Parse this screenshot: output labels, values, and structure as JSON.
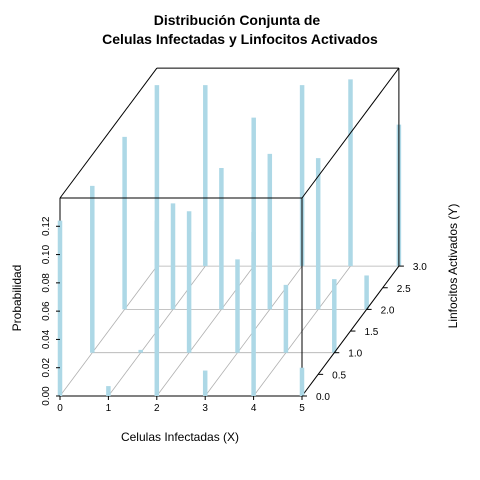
{
  "chart_data": {
    "type": "scatter3d-histogram",
    "title_line1": "Distribución Conjunta de",
    "title_line2": "Celulas Infectadas y Linfocitos Activados",
    "xlabel": "Celulas Infectadas (X)",
    "ylabel": "Linfocitos Activados (Y)",
    "zlabel": "Probabilidad",
    "x_ticks": [
      "0",
      "1",
      "2",
      "3",
      "4",
      "5"
    ],
    "y_ticks": [
      "0.0",
      "0.5",
      "1.0",
      "1.5",
      "2.0",
      "2.5",
      "3.0"
    ],
    "z_ticks": [
      "0.00",
      "0.02",
      "0.04",
      "0.06",
      "0.08",
      "0.10",
      "0.12"
    ],
    "xlim": [
      0,
      5
    ],
    "ylim": [
      0,
      3
    ],
    "zlim": [
      0,
      0.14
    ],
    "grid": true,
    "bar_color": "#add8e6",
    "points": [
      {
        "x": 0,
        "y": 0,
        "z": 0.124
      },
      {
        "x": 0,
        "y": 1,
        "z": 0.118
      },
      {
        "x": 0,
        "y": 2,
        "z": 0.122
      },
      {
        "x": 0,
        "y": 3,
        "z": 0.128
      },
      {
        "x": 1,
        "y": 0,
        "z": 0.007
      },
      {
        "x": 1,
        "y": 1,
        "z": 0.002
      },
      {
        "x": 1,
        "y": 2,
        "z": 0.075
      },
      {
        "x": 1,
        "y": 3,
        "z": 0.128
      },
      {
        "x": 2,
        "y": 0,
        "z": 0.124
      },
      {
        "x": 2,
        "y": 1,
        "z": 0.1
      },
      {
        "x": 2,
        "y": 2,
        "z": 0.1
      },
      {
        "x": 2,
        "y": 3,
        "z": 0.105
      },
      {
        "x": 3,
        "y": 0,
        "z": 0.018
      },
      {
        "x": 3,
        "y": 1,
        "z": 0.066
      },
      {
        "x": 3,
        "y": 2,
        "z": 0.11
      },
      {
        "x": 3,
        "y": 3,
        "z": 0.128
      },
      {
        "x": 4,
        "y": 0,
        "z": 0.116
      },
      {
        "x": 4,
        "y": 1,
        "z": 0.048
      },
      {
        "x": 4,
        "y": 2,
        "z": 0.107
      },
      {
        "x": 4,
        "y": 3,
        "z": 0.132
      },
      {
        "x": 5,
        "y": 0,
        "z": 0.02
      },
      {
        "x": 5,
        "y": 1,
        "z": 0.052
      },
      {
        "x": 5,
        "y": 2,
        "z": 0.024
      },
      {
        "x": 5,
        "y": 3,
        "z": 0.1
      }
    ]
  }
}
